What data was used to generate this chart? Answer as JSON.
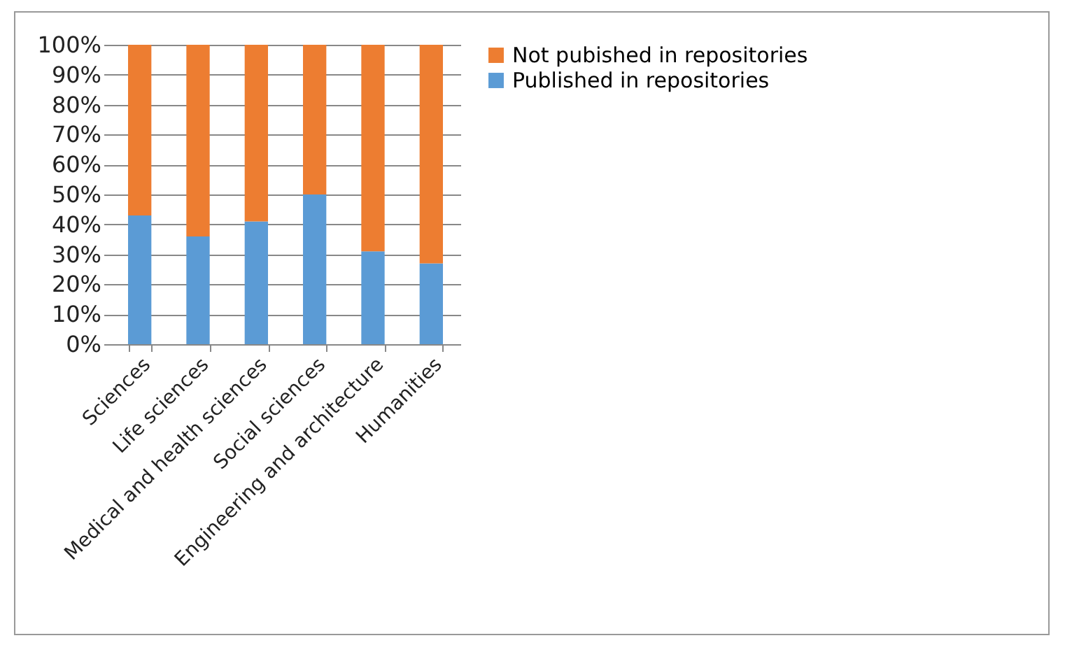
{
  "chart_data": {
    "type": "bar",
    "stacked": true,
    "categories": [
      "Sciences",
      "Life sciences",
      "Medical and health sciences",
      "Social sciences",
      "Engineering and architecture",
      "Humanities"
    ],
    "series": [
      {
        "name": "Published in repositories",
        "color": "#5b9bd5",
        "values": [
          43,
          36,
          41,
          50,
          31,
          27
        ]
      },
      {
        "name": "Not pubished in repositories",
        "color": "#ed7d31",
        "values": [
          57,
          64,
          59,
          50,
          69,
          73
        ]
      }
    ],
    "ylim": [
      0,
      100
    ],
    "yticks": [
      {
        "value": 0,
        "label": "0%"
      },
      {
        "value": 10,
        "label": "10%"
      },
      {
        "value": 20,
        "label": "20%"
      },
      {
        "value": 30,
        "label": "30%"
      },
      {
        "value": 40,
        "label": "40%"
      },
      {
        "value": 50,
        "label": "50%"
      },
      {
        "value": 60,
        "label": "60%"
      },
      {
        "value": 70,
        "label": "70%"
      },
      {
        "value": 80,
        "label": "80%"
      },
      {
        "value": 90,
        "label": "90%"
      },
      {
        "value": 100,
        "label": "100%"
      }
    ],
    "grid": "y",
    "legend": "right"
  }
}
